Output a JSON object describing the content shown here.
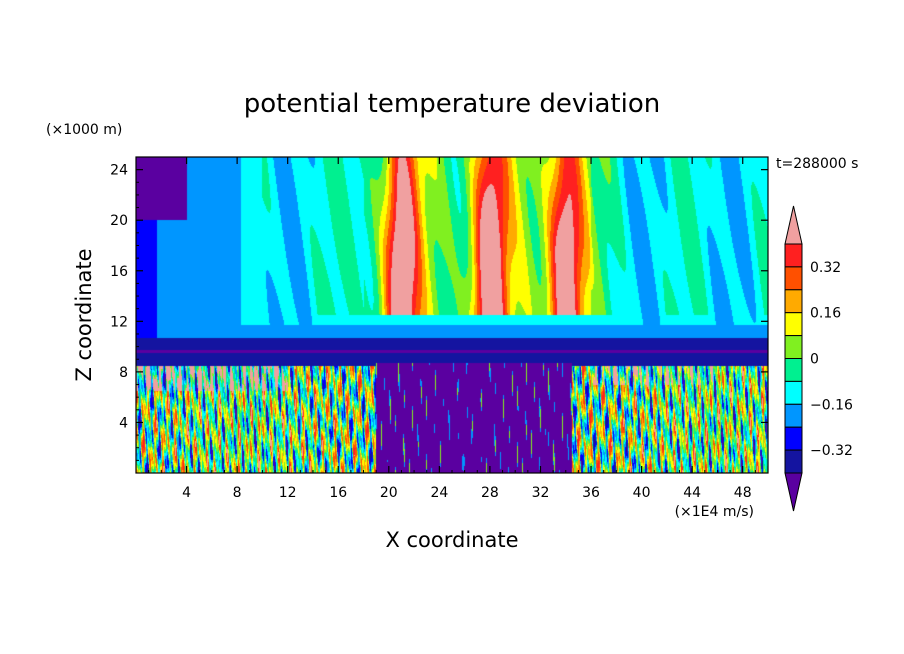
{
  "chart_data": {
    "type": "heatmap",
    "title": "potential temperature deviation",
    "xlabel": "X coordinate",
    "ylabel": "Z coordinate",
    "x_unit_label": "(×1E4 m/s)",
    "y_unit_label": "(×1000 m)",
    "time_label": "t=288000 s",
    "xlim": [
      0,
      50
    ],
    "ylim": [
      0,
      25
    ],
    "x_ticks": [
      4,
      8,
      12,
      16,
      20,
      24,
      28,
      32,
      36,
      40,
      44,
      48
    ],
    "x_tick_labels": [
      "4",
      "8",
      "12",
      "16",
      "20",
      "24",
      "28",
      "32",
      "36",
      "40",
      "44",
      "48"
    ],
    "y_ticks": [
      4,
      8,
      12,
      16,
      20,
      24
    ],
    "y_tick_labels": [
      "4",
      "8",
      "12",
      "16",
      "20",
      "24"
    ],
    "tropopause_height": 9.5,
    "warm_plumes_x": [
      21,
      28,
      34
    ],
    "colorbar": {
      "levels": [
        -0.4,
        -0.32,
        -0.24,
        -0.16,
        -0.08,
        0,
        0.08,
        0.16,
        0.24,
        0.32,
        0.4
      ],
      "colors": [
        "#5a00a0",
        "#1414a0",
        "#0000ff",
        "#0096ff",
        "#00ffff",
        "#00f090",
        "#80f020",
        "#ffff00",
        "#ffaa00",
        "#ff5000",
        "#ff2020",
        "#f0a0a0"
      ],
      "extend": "both",
      "tick_values": [
        0.32,
        0.16,
        0,
        -0.16,
        -0.32
      ],
      "tick_labels": [
        "0.32",
        "0.16",
        "0",
        "−0.16",
        "−0.32"
      ]
    }
  }
}
